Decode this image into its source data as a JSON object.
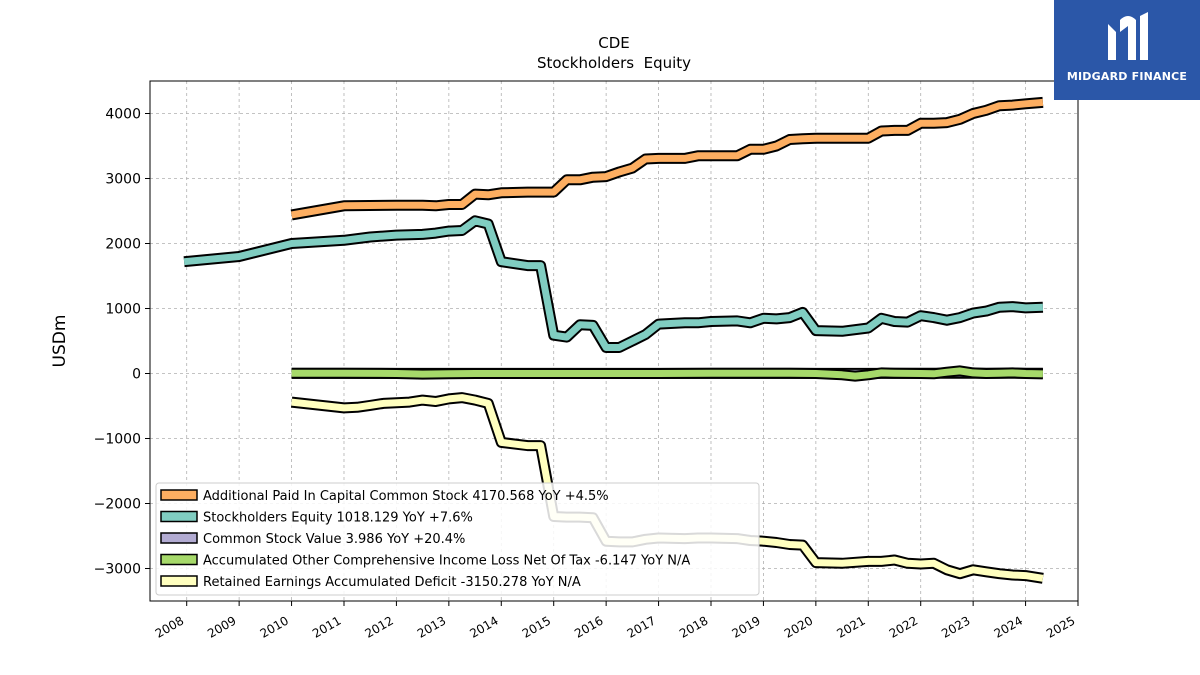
{
  "brand": {
    "name": "MIDGARD FINANCE"
  },
  "chart_data": {
    "type": "line",
    "title": "CDE",
    "subtitle": "Stockholders  Equity",
    "xlabel": "",
    "ylabel": "USDm",
    "xlim": [
      2007.3,
      2025.0
    ],
    "ylim": [
      -3500,
      4500
    ],
    "x_ticks": [
      "2008",
      "2009",
      "2010",
      "2011",
      "2012",
      "2013",
      "2014",
      "2015",
      "2016",
      "2017",
      "2018",
      "2019",
      "2020",
      "2021",
      "2022",
      "2023",
      "2024",
      "2025"
    ],
    "y_ticks": [
      -3000,
      -2000,
      -1000,
      0,
      1000,
      2000,
      3000,
      4000
    ],
    "y_tick_labels": [
      "−3000",
      "−2000",
      "−1000",
      "0",
      "1000",
      "2000",
      "3000",
      "4000"
    ],
    "grid": true,
    "legend_position": "lower-left",
    "series": [
      {
        "name": "Additional Paid In Capital Common Stock",
        "legend": "Additional Paid In Capital Common Stock  4170.568 YoY +4.5%",
        "color": "#fdae61",
        "x": [
          2010.0,
          2011.0,
          2012.0,
          2012.5,
          2012.75,
          2013.0,
          2013.25,
          2013.5,
          2013.75,
          2014.0,
          2014.5,
          2015.0,
          2015.25,
          2015.5,
          2015.75,
          2016.0,
          2016.25,
          2016.5,
          2016.75,
          2017.0,
          2017.5,
          2017.75,
          2018.0,
          2018.5,
          2018.75,
          2019.0,
          2019.25,
          2019.5,
          2019.75,
          2020.0,
          2020.5,
          2021.0,
          2021.25,
          2021.5,
          2021.75,
          2022.0,
          2022.25,
          2022.5,
          2022.75,
          2023.0,
          2023.25,
          2023.5,
          2023.75,
          2024.0,
          2024.33
        ],
        "values": [
          2440,
          2580,
          2590,
          2590,
          2580,
          2600,
          2600,
          2760,
          2750,
          2780,
          2790,
          2790,
          2980,
          2980,
          3020,
          3030,
          3100,
          3160,
          3300,
          3310,
          3310,
          3350,
          3350,
          3350,
          3450,
          3450,
          3500,
          3600,
          3610,
          3620,
          3620,
          3620,
          3730,
          3740,
          3740,
          3850,
          3850,
          3860,
          3910,
          4000,
          4050,
          4120,
          4130,
          4150,
          4171
        ]
      },
      {
        "name": "Stockholders Equity",
        "legend": "Stockholders Equity  1018.129 YoY +7.6%",
        "color": "#80cdc1",
        "x": [
          2007.95,
          2009.0,
          2010.0,
          2011.0,
          2011.5,
          2012.0,
          2012.5,
          2012.75,
          2013.0,
          2013.25,
          2013.5,
          2013.75,
          2014.0,
          2014.5,
          2014.75,
          2015.0,
          2015.25,
          2015.5,
          2015.75,
          2016.0,
          2016.25,
          2016.5,
          2016.75,
          2017.0,
          2017.5,
          2017.75,
          2018.0,
          2018.5,
          2018.75,
          2019.0,
          2019.25,
          2019.5,
          2019.75,
          2020.0,
          2020.5,
          2021.0,
          2021.25,
          2021.5,
          2021.75,
          2022.0,
          2022.25,
          2022.5,
          2022.75,
          2023.0,
          2023.25,
          2023.5,
          2023.75,
          2024.0,
          2024.33
        ],
        "values": [
          1720,
          1800,
          2000,
          2050,
          2100,
          2130,
          2140,
          2160,
          2190,
          2200,
          2350,
          2300,
          1720,
          1660,
          1660,
          590,
          560,
          750,
          740,
          400,
          400,
          500,
          600,
          760,
          780,
          780,
          800,
          810,
          780,
          850,
          840,
          860,
          940,
          660,
          650,
          700,
          850,
          800,
          790,
          890,
          860,
          820,
          860,
          930,
          960,
          1020,
          1030,
          1010,
          1018
        ]
      },
      {
        "name": "Common Stock Value",
        "legend": "Common Stock Value  3.986 YoY +20.4%",
        "color": "#b2abd2",
        "x": [
          2010.0,
          2012.0,
          2014.0,
          2016.0,
          2018.0,
          2020.0,
          2022.0,
          2024.33
        ],
        "values": [
          1,
          1,
          1,
          2,
          2,
          2,
          3,
          4
        ]
      },
      {
        "name": "Accumulated Other Comprehensive Income Loss Net Of Tax",
        "legend": "Accumulated Other Comprehensive Income Loss Net Of Tax  -6.147 YoY N/A",
        "color": "#a6d96a",
        "x": [
          2010.0,
          2011.0,
          2012.0,
          2012.5,
          2013.0,
          2013.5,
          2014.0,
          2015.0,
          2016.0,
          2017.0,
          2018.0,
          2019.0,
          2019.5,
          2020.0,
          2020.5,
          2020.75,
          2021.0,
          2021.25,
          2021.5,
          2022.0,
          2022.25,
          2022.5,
          2022.75,
          2023.0,
          2023.25,
          2023.5,
          2023.75,
          2024.0,
          2024.33
        ],
        "values": [
          5,
          5,
          0,
          -10,
          -5,
          0,
          0,
          0,
          0,
          0,
          3,
          3,
          3,
          0,
          -20,
          -40,
          -20,
          10,
          5,
          0,
          -5,
          20,
          40,
          10,
          0,
          5,
          10,
          0,
          -6
        ]
      },
      {
        "name": "Retained Earnings Accumulated Deficit",
        "legend": "Retained Earnings Accumulated Deficit  -3150.278 YoY N/A",
        "color": "#ffffbf",
        "x": [
          2010.0,
          2011.0,
          2011.25,
          2011.5,
          2011.75,
          2012.0,
          2012.25,
          2012.5,
          2012.75,
          2013.0,
          2013.25,
          2013.5,
          2013.75,
          2014.0,
          2014.5,
          2014.75,
          2015.0,
          2015.25,
          2015.5,
          2015.75,
          2016.0,
          2016.25,
          2016.5,
          2016.75,
          2017.0,
          2017.5,
          2017.75,
          2018.0,
          2018.5,
          2018.75,
          2019.0,
          2019.25,
          2019.5,
          2019.75,
          2020.0,
          2020.5,
          2021.0,
          2021.25,
          2021.5,
          2021.75,
          2022.0,
          2022.25,
          2022.5,
          2022.75,
          2023.0,
          2023.25,
          2023.5,
          2023.75,
          2024.0,
          2024.33
        ],
        "values": [
          -440,
          -530,
          -520,
          -490,
          -460,
          -450,
          -440,
          -410,
          -430,
          -390,
          -370,
          -410,
          -460,
          -1060,
          -1110,
          -1110,
          -2200,
          -2210,
          -2210,
          -2220,
          -2580,
          -2590,
          -2590,
          -2550,
          -2530,
          -2540,
          -2530,
          -2530,
          -2540,
          -2570,
          -2580,
          -2600,
          -2630,
          -2640,
          -2910,
          -2920,
          -2890,
          -2890,
          -2870,
          -2920,
          -2930,
          -2920,
          -3020,
          -3080,
          -3020,
          -3050,
          -3080,
          -3100,
          -3110,
          -3150
        ]
      }
    ]
  }
}
